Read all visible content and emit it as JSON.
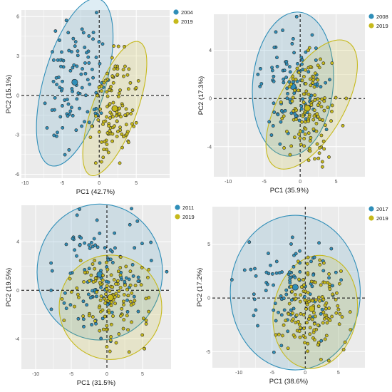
{
  "colors": {
    "group_a": "#2F8EB8",
    "group_b": "#C6B91B",
    "panel_bg": "#EBEBEB",
    "grid": "#ffffff",
    "zero_line": "#000000",
    "point_stroke": "#2b2b2b"
  },
  "chart_data": [
    {
      "type": "scatter",
      "xlabel": "PC1 (42.7%)",
      "ylabel": "PC2 (15.1%)",
      "xlim": [
        -10.5,
        9.5
      ],
      "ylim": [
        -6.3,
        6.5
      ],
      "xticks": [
        -10,
        -5,
        0,
        5
      ],
      "yticks": [
        -6,
        -3,
        0,
        3,
        6
      ],
      "grid": true,
      "legend_position": "top-right",
      "series": [
        {
          "name": "2004",
          "centroid": [
            -3.3,
            1.0
          ],
          "ellipse": {
            "cx": -3.3,
            "cy": 1.0,
            "rx": 4.2,
            "ry": 6.6,
            "angle": 16
          },
          "spread": [
            2.4,
            2.5
          ],
          "n": 105,
          "seed": 11
        },
        {
          "name": "2019",
          "centroid": [
            2.1,
            -1.0
          ],
          "ellipse": {
            "cx": 2.1,
            "cy": -1.0,
            "rx": 3.0,
            "ry": 5.4,
            "angle": 20
          },
          "spread": [
            1.5,
            2.0
          ],
          "n": 120,
          "seed": 12
        }
      ]
    },
    {
      "type": "scatter",
      "xlabel": "PC1 (35.9%)",
      "ylabel": "PC2 (17.3%)",
      "xlim": [
        -12,
        9
      ],
      "ylim": [
        -6.5,
        7.0
      ],
      "xticks": [
        -10,
        -5,
        0,
        5
      ],
      "yticks": [
        -4,
        0,
        4
      ],
      "grid": true,
      "legend_position": "top-right",
      "series": [
        {
          "name": "2008",
          "centroid": [
            -1.0,
            1.0
          ],
          "ellipse": {
            "cx": -1.0,
            "cy": 1.2,
            "rx": 5.6,
            "ry": 6.0,
            "angle": 5
          },
          "spread": [
            2.7,
            2.5
          ],
          "n": 100,
          "seed": 21
        },
        {
          "name": "2019",
          "centroid": [
            1.0,
            -0.8
          ],
          "ellipse": {
            "cx": 1.6,
            "cy": -0.5,
            "rx": 4.5,
            "ry": 6.0,
            "angle": 30
          },
          "spread": [
            2.2,
            2.4
          ],
          "n": 125,
          "seed": 22
        }
      ]
    },
    {
      "type": "scatter",
      "xlabel": "PC1 (31.5%)",
      "ylabel": "PC2 (19.5%)",
      "xlim": [
        -12,
        9
      ],
      "ylim": [
        -6.5,
        7.0
      ],
      "xticks": [
        -10,
        -5,
        0,
        5
      ],
      "yticks": [
        -4,
        0,
        4
      ],
      "grid": true,
      "legend_position": "top-right",
      "series": [
        {
          "name": "2011",
          "centroid": [
            -1.0,
            1.3
          ],
          "ellipse": {
            "cx": -1.0,
            "cy": 1.5,
            "rx": 8.8,
            "ry": 5.6,
            "angle": 0
          },
          "spread": [
            3.8,
            2.6
          ],
          "n": 110,
          "seed": 31
        },
        {
          "name": "2019",
          "centroid": [
            0.5,
            -0.6
          ],
          "ellipse": {
            "cx": 0.5,
            "cy": -1.4,
            "rx": 7.2,
            "ry": 4.3,
            "angle": 0
          },
          "spread": [
            3.0,
            2.0
          ],
          "n": 125,
          "seed": 32
        }
      ]
    },
    {
      "type": "scatter",
      "xlabel": "PC1 (38.6%)",
      "ylabel": "PC2 (17.2%)",
      "xlim": [
        -14,
        9
      ],
      "ylim": [
        -6.5,
        8.5
      ],
      "xticks": [
        -10,
        -5,
        0,
        5
      ],
      "yticks": [
        -5,
        0,
        5
      ],
      "grid": true,
      "legend_position": "top-right",
      "series": [
        {
          "name": "2017",
          "centroid": [
            -1.5,
            1.0
          ],
          "ellipse": {
            "cx": -1.5,
            "cy": 0.5,
            "rx": 9.8,
            "ry": 7.2,
            "angle": 0
          },
          "spread": [
            3.6,
            2.8
          ],
          "n": 95,
          "seed": 41
        },
        {
          "name": "2019",
          "centroid": [
            1.0,
            -1.0
          ],
          "ellipse": {
            "cx": 1.5,
            "cy": -1.3,
            "rx": 6.3,
            "ry": 5.3,
            "angle": 10
          },
          "spread": [
            2.4,
            2.2
          ],
          "n": 130,
          "seed": 42
        }
      ]
    }
  ]
}
